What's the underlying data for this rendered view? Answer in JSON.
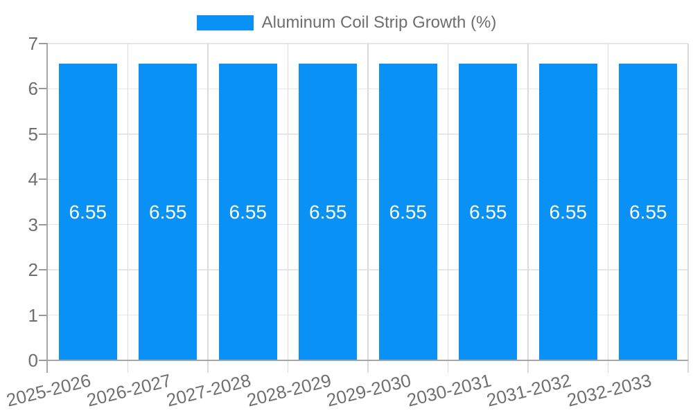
{
  "legend": {
    "label": "Aluminum Coil Strip Growth (%)"
  },
  "colors": {
    "bar": "#0a91f5",
    "horizontal_grid": "#e6e6e6",
    "vertical_grid": "#dadada",
    "axis": "#a6a6a6",
    "axis_text": "#6e6e6e",
    "value_label_text": "#ffffff",
    "background": "#ffffff"
  },
  "chart_data": {
    "type": "bar",
    "title": "",
    "legend": "Aluminum Coil Strip Growth (%)",
    "legend_position": "top-center",
    "categories": [
      "2025-2026",
      "2026-2027",
      "2027-2028",
      "2028-2029",
      "2029-2030",
      "2030-2031",
      "2031-2032",
      "2032-2033"
    ],
    "values": [
      6.55,
      6.55,
      6.55,
      6.55,
      6.55,
      6.55,
      6.55,
      6.55
    ],
    "value_labels": [
      "6.55",
      "6.55",
      "6.55",
      "6.55",
      "6.55",
      "6.55",
      "6.55",
      "6.55"
    ],
    "xlabel": "",
    "ylabel": "",
    "ylim": [
      0,
      7
    ],
    "yticks": [
      0,
      1,
      2,
      3,
      4,
      5,
      6,
      7
    ],
    "grid": true,
    "bar_color": "#0a91f5",
    "x_label_rotation_deg": -14
  }
}
